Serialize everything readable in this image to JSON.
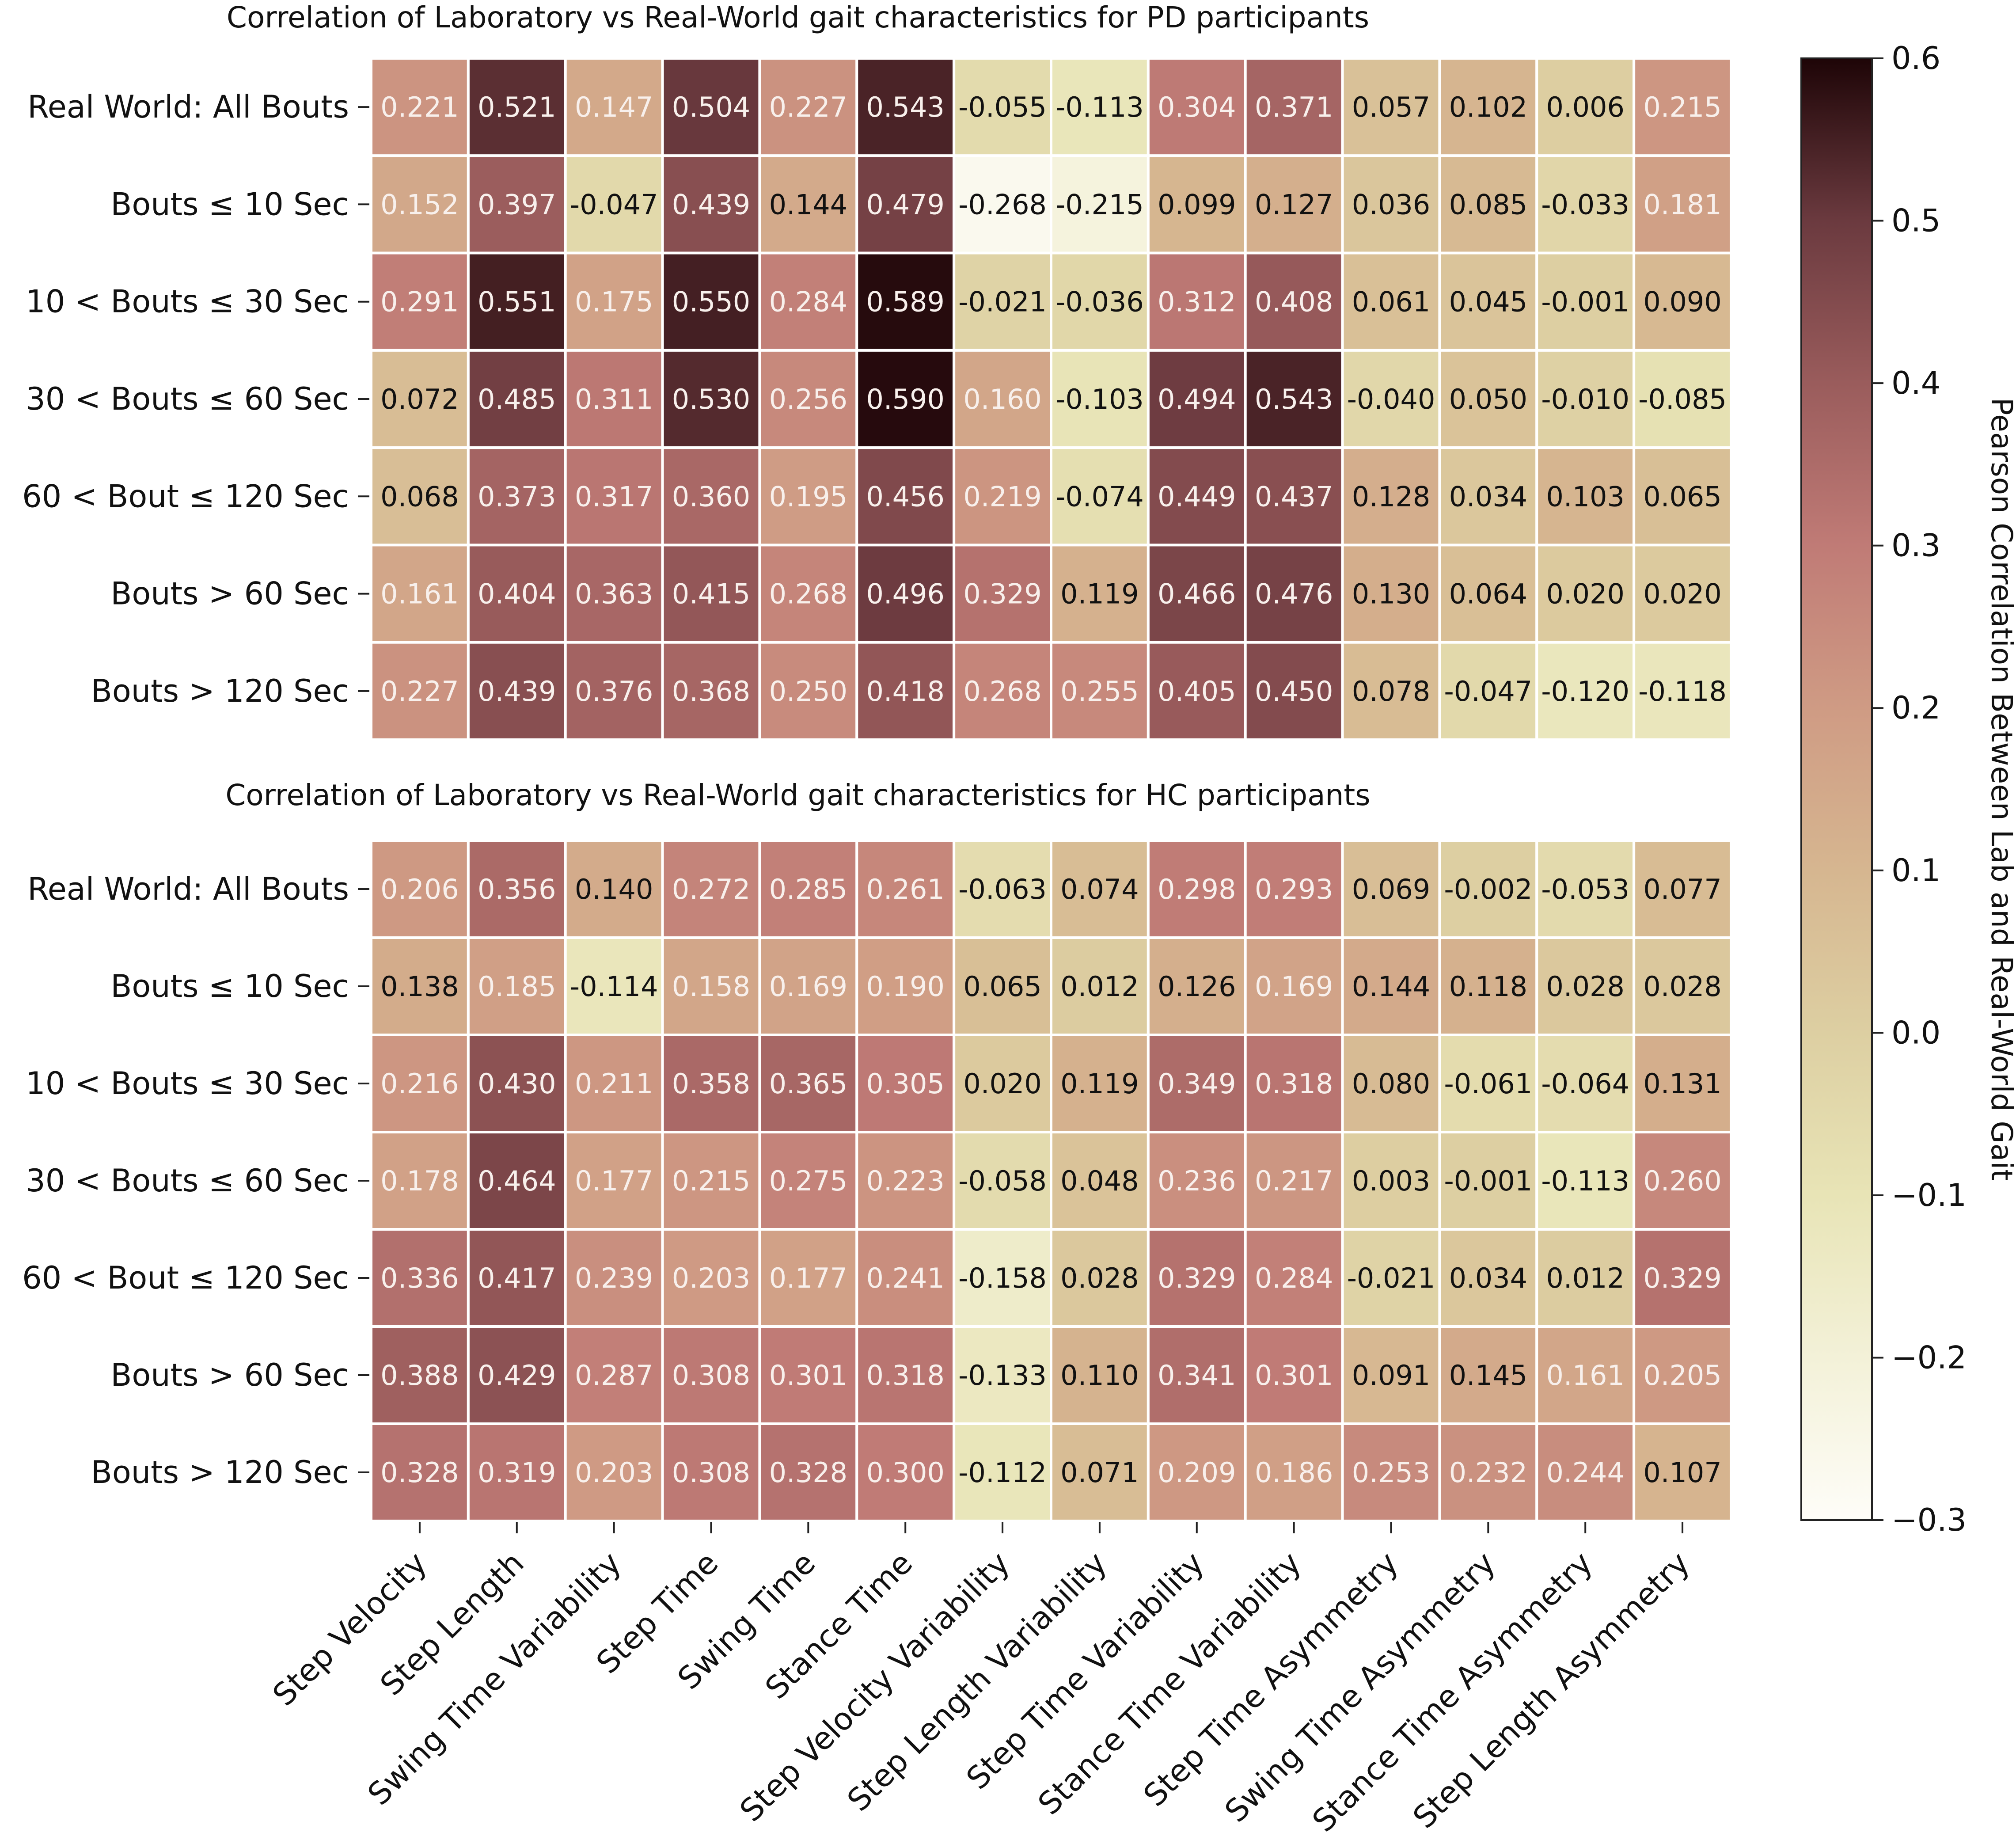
{
  "chart_data": [
    {
      "type": "heatmap",
      "title": "Correlation of Laboratory vs Real-World gait characteristics for PD participants",
      "rows": [
        "Real World: All Bouts",
        "Bouts ≤ 10 Sec",
        "10 < Bouts ≤ 30 Sec",
        "30 < Bouts ≤ 60 Sec",
        "60 < Bout ≤ 120 Sec",
        "Bouts > 60 Sec",
        "Bouts > 120 Sec"
      ],
      "columns": [
        "Step Velocity",
        "Step Length",
        "Swing Time Variability",
        "Step Time",
        "Swing Time",
        "Stance Time",
        "Step Velocity Variability",
        "Step Length Variability",
        "Step Time Variability",
        "Stance Time Variability",
        "Step Time Asymmetry",
        "Swing Time Asymmetry",
        "Stance Time Asymmetry",
        "Step Length Asymmetry"
      ],
      "values": [
        [
          0.221,
          0.521,
          0.147,
          0.504,
          0.227,
          0.543,
          -0.055,
          -0.113,
          0.304,
          0.371,
          0.057,
          0.102,
          0.006,
          0.215
        ],
        [
          0.152,
          0.397,
          -0.047,
          0.439,
          0.144,
          0.479,
          -0.268,
          -0.215,
          0.099,
          0.127,
          0.036,
          0.085,
          -0.033,
          0.181
        ],
        [
          0.291,
          0.551,
          0.175,
          0.55,
          0.284,
          0.589,
          -0.021,
          -0.036,
          0.312,
          0.408,
          0.061,
          0.045,
          -0.001,
          0.09
        ],
        [
          0.072,
          0.485,
          0.311,
          0.53,
          0.256,
          0.59,
          0.16,
          -0.103,
          0.494,
          0.543,
          -0.04,
          0.05,
          -0.01,
          -0.085
        ],
        [
          0.068,
          0.373,
          0.317,
          0.36,
          0.195,
          0.456,
          0.219,
          -0.074,
          0.449,
          0.437,
          0.128,
          0.034,
          0.103,
          0.065
        ],
        [
          0.161,
          0.404,
          0.363,
          0.415,
          0.268,
          0.496,
          0.329,
          0.119,
          0.466,
          0.476,
          0.13,
          0.064,
          0.02,
          0.02
        ],
        [
          0.227,
          0.439,
          0.376,
          0.368,
          0.25,
          0.418,
          0.268,
          0.255,
          0.405,
          0.45,
          0.078,
          -0.047,
          -0.12,
          -0.118
        ]
      ],
      "labels": [
        [
          "0.221",
          "0.521",
          "0.147",
          "0.504",
          "0.227",
          "0.543",
          "-0.055",
          "-0.113",
          "0.304",
          "0.371",
          "0.057",
          "0.102",
          "0.006",
          "0.215"
        ],
        [
          "0.152",
          "0.397",
          "-0.047",
          "0.439",
          "0.144",
          "0.479",
          "-0.268",
          "-0.215",
          "0.099",
          "0.127",
          "0.036",
          "0.085",
          "-0.033",
          "0.181"
        ],
        [
          "0.291",
          "0.551",
          "0.175",
          "0.550",
          "0.284",
          "0.589",
          "-0.021",
          "-0.036",
          "0.312",
          "0.408",
          "0.061",
          "0.045",
          "-0.001",
          "0.090"
        ],
        [
          "0.072",
          "0.485",
          "0.311",
          "0.530",
          "0.256",
          "0.590",
          "0.160",
          "-0.103",
          "0.494",
          "0.543",
          "-0.040",
          "0.050",
          "-0.010",
          "-0.085"
        ],
        [
          "0.068",
          "0.373",
          "0.317",
          "0.360",
          "0.195",
          "0.456",
          "0.219",
          "-0.074",
          "0.449",
          "0.437",
          "0.128",
          "0.034",
          "0.103",
          "0.065"
        ],
        [
          "0.161",
          "0.404",
          "0.363",
          "0.415",
          "0.268",
          "0.496",
          "0.329",
          "0.119",
          "0.466",
          "0.476",
          "0.130",
          "0.064",
          "0.020",
          "0.020"
        ],
        [
          "0.227",
          "0.439",
          "0.376",
          "0.368",
          "0.250",
          "0.418",
          "0.268",
          "0.255",
          "0.405",
          "0.450",
          "0.078",
          "-0.047",
          "-0.120",
          "-0.118"
        ]
      ],
      "dark_text_cells": [
        [
          0,
          6
        ],
        [
          0,
          7
        ],
        [
          0,
          10
        ],
        [
          0,
          11
        ],
        [
          0,
          12
        ],
        [
          1,
          2
        ],
        [
          1,
          4
        ],
        [
          1,
          6
        ],
        [
          1,
          7
        ],
        [
          1,
          8
        ],
        [
          1,
          9
        ],
        [
          1,
          10
        ],
        [
          1,
          11
        ],
        [
          1,
          12
        ],
        [
          2,
          6
        ],
        [
          2,
          7
        ],
        [
          2,
          10
        ],
        [
          2,
          11
        ],
        [
          2,
          12
        ],
        [
          2,
          13
        ],
        [
          3,
          0
        ],
        [
          3,
          7
        ],
        [
          3,
          10
        ],
        [
          3,
          11
        ],
        [
          3,
          12
        ],
        [
          3,
          13
        ],
        [
          4,
          0
        ],
        [
          4,
          7
        ],
        [
          4,
          10
        ],
        [
          4,
          11
        ],
        [
          4,
          12
        ],
        [
          4,
          13
        ],
        [
          5,
          7
        ],
        [
          5,
          10
        ],
        [
          5,
          11
        ],
        [
          5,
          12
        ],
        [
          5,
          13
        ],
        [
          6,
          10
        ],
        [
          6,
          11
        ],
        [
          6,
          12
        ],
        [
          6,
          13
        ]
      ]
    },
    {
      "type": "heatmap",
      "title": "Correlation of Laboratory vs Real-World gait characteristics for HC participants",
      "rows": [
        "Real World: All Bouts",
        "Bouts ≤ 10 Sec",
        "10 < Bouts ≤ 30 Sec",
        "30 < Bouts ≤ 60 Sec",
        "60 < Bout ≤ 120 Sec",
        "Bouts > 60 Sec",
        "Bouts > 120 Sec"
      ],
      "columns": [
        "Step Velocity",
        "Step Length",
        "Swing Time Variability",
        "Step Time",
        "Swing Time",
        "Stance Time",
        "Step Velocity Variability",
        "Step Length Variability",
        "Step Time Variability",
        "Stance Time Variability",
        "Step Time Asymmetry",
        "Swing Time Asymmetry",
        "Stance Time Asymmetry",
        "Step Length Asymmetry"
      ],
      "values": [
        [
          0.206,
          0.356,
          0.14,
          0.272,
          0.285,
          0.261,
          -0.063,
          0.074,
          0.298,
          0.293,
          0.069,
          -0.002,
          -0.053,
          0.077
        ],
        [
          0.138,
          0.185,
          -0.114,
          0.158,
          0.169,
          0.19,
          0.065,
          0.012,
          0.126,
          0.169,
          0.144,
          0.118,
          0.028,
          0.028
        ],
        [
          0.216,
          0.43,
          0.211,
          0.358,
          0.365,
          0.305,
          0.02,
          0.119,
          0.349,
          0.318,
          0.08,
          -0.061,
          -0.064,
          0.131
        ],
        [
          0.178,
          0.464,
          0.177,
          0.215,
          0.275,
          0.223,
          -0.058,
          0.048,
          0.236,
          0.217,
          0.003,
          -0.001,
          -0.113,
          0.26
        ],
        [
          0.336,
          0.417,
          0.239,
          0.203,
          0.177,
          0.241,
          -0.158,
          0.028,
          0.329,
          0.284,
          -0.021,
          0.034,
          0.012,
          0.329
        ],
        [
          0.388,
          0.429,
          0.287,
          0.308,
          0.301,
          0.318,
          -0.133,
          0.11,
          0.341,
          0.301,
          0.091,
          0.145,
          0.161,
          0.205
        ],
        [
          0.328,
          0.319,
          0.203,
          0.308,
          0.328,
          0.3,
          -0.112,
          0.071,
          0.209,
          0.186,
          0.253,
          0.232,
          0.244,
          0.107
        ]
      ],
      "labels": [
        [
          "0.206",
          "0.356",
          "0.140",
          "0.272",
          "0.285",
          "0.261",
          "-0.063",
          "0.074",
          "0.298",
          "0.293",
          "0.069",
          "-0.002",
          "-0.053",
          "0.077"
        ],
        [
          "0.138",
          "0.185",
          "-0.114",
          "0.158",
          "0.169",
          "0.190",
          "0.065",
          "0.012",
          "0.126",
          "0.169",
          "0.144",
          "0.118",
          "0.028",
          "0.028"
        ],
        [
          "0.216",
          "0.430",
          "0.211",
          "0.358",
          "0.365",
          "0.305",
          "0.020",
          "0.119",
          "0.349",
          "0.318",
          "0.080",
          "-0.061",
          "-0.064",
          "0.131"
        ],
        [
          "0.178",
          "0.464",
          "0.177",
          "0.215",
          "0.275",
          "0.223",
          "-0.058",
          "0.048",
          "0.236",
          "0.217",
          "0.003",
          "-0.001",
          "-0.113",
          "0.260"
        ],
        [
          "0.336",
          "0.417",
          "0.239",
          "0.203",
          "0.177",
          "0.241",
          "-0.158",
          "0.028",
          "0.329",
          "0.284",
          "-0.021",
          "0.034",
          "0.012",
          "0.329"
        ],
        [
          "0.388",
          "0.429",
          "0.287",
          "0.308",
          "0.301",
          "0.318",
          "-0.133",
          "0.110",
          "0.341",
          "0.301",
          "0.091",
          "0.145",
          "0.161",
          "0.205"
        ],
        [
          "0.328",
          "0.319",
          "0.203",
          "0.308",
          "0.328",
          "0.300",
          "-0.112",
          "0.071",
          "0.209",
          "0.186",
          "0.253",
          "0.232",
          "0.244",
          "0.107"
        ]
      ],
      "dark_text_cells": [
        [
          0,
          2
        ],
        [
          0,
          6
        ],
        [
          0,
          7
        ],
        [
          0,
          10
        ],
        [
          0,
          11
        ],
        [
          0,
          12
        ],
        [
          0,
          13
        ],
        [
          1,
          0
        ],
        [
          1,
          2
        ],
        [
          1,
          6
        ],
        [
          1,
          7
        ],
        [
          1,
          8
        ],
        [
          1,
          10
        ],
        [
          1,
          11
        ],
        [
          1,
          12
        ],
        [
          1,
          13
        ],
        [
          2,
          6
        ],
        [
          2,
          7
        ],
        [
          2,
          10
        ],
        [
          2,
          11
        ],
        [
          2,
          12
        ],
        [
          2,
          13
        ],
        [
          3,
          6
        ],
        [
          3,
          7
        ],
        [
          3,
          10
        ],
        [
          3,
          11
        ],
        [
          3,
          12
        ],
        [
          4,
          6
        ],
        [
          4,
          7
        ],
        [
          4,
          10
        ],
        [
          4,
          11
        ],
        [
          4,
          12
        ],
        [
          5,
          6
        ],
        [
          5,
          7
        ],
        [
          5,
          10
        ],
        [
          5,
          11
        ],
        [
          6,
          6
        ],
        [
          6,
          7
        ],
        [
          6,
          13
        ]
      ]
    }
  ],
  "colorbar": {
    "label": "Pearson Correlation Between Lab and Real-World Gait",
    "vmin": -0.3,
    "vmax": 0.6,
    "ticks": [
      0.6,
      0.5,
      0.4,
      0.3,
      0.2,
      0.1,
      0.0,
      -0.1,
      -0.2,
      -0.3
    ],
    "tick_labels": [
      "0.6",
      "0.5",
      "0.4",
      "0.3",
      "0.2",
      "0.1",
      "0.0",
      "−0.1",
      "−0.2",
      "−0.3"
    ],
    "colorscale": [
      [
        -0.3,
        "#fefdf8"
      ],
      [
        -0.2,
        "#f3f1d8"
      ],
      [
        -0.1,
        "#e8e4b6"
      ],
      [
        0.0,
        "#ddcfa2"
      ],
      [
        0.1,
        "#d6b690"
      ],
      [
        0.2,
        "#cf9b84"
      ],
      [
        0.3,
        "#c07b76"
      ],
      [
        0.4,
        "#9a5c5c"
      ],
      [
        0.5,
        "#6b3a3f"
      ],
      [
        0.6,
        "#1e0507"
      ]
    ],
    "light_text_color": "#f8f0ec",
    "dark_text_color": "#111111"
  }
}
